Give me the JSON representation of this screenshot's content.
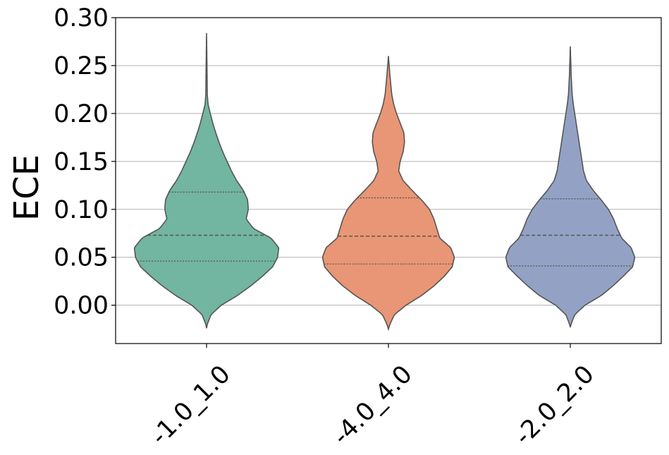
{
  "chart_data": {
    "type": "violin",
    "ylabel": "ECE",
    "xlabel": "",
    "title": "",
    "categories": [
      "-1.0_1.0",
      "-4.0_4.0",
      "-2.0_2.0"
    ],
    "ylim": [
      -0.04,
      0.3
    ],
    "yticks": [
      0.0,
      0.05,
      0.1,
      0.15,
      0.2,
      0.25,
      0.3
    ],
    "ytick_labels": [
      "0.00",
      "0.05",
      "0.10",
      "0.15",
      "0.20",
      "0.25",
      "0.30"
    ],
    "grid": "y",
    "inner": "quartile",
    "colors": [
      "#72b5a0",
      "#e99676",
      "#93a2c4"
    ],
    "edge_color": "#555555",
    "violins": [
      {
        "category": "-1.0_1.0",
        "min": -0.024,
        "max": 0.284,
        "q1": 0.046,
        "median": 0.073,
        "q3": 0.118,
        "density_profile": [
          [
            -0.024,
            0.0
          ],
          [
            -0.02,
            0.01
          ],
          [
            -0.01,
            0.06
          ],
          [
            0.0,
            0.2
          ],
          [
            0.01,
            0.42
          ],
          [
            0.02,
            0.6
          ],
          [
            0.03,
            0.76
          ],
          [
            0.04,
            0.9
          ],
          [
            0.05,
            0.97
          ],
          [
            0.06,
            0.985
          ],
          [
            0.07,
            0.88
          ],
          [
            0.08,
            0.64
          ],
          [
            0.09,
            0.54
          ],
          [
            0.1,
            0.57
          ],
          [
            0.11,
            0.56
          ],
          [
            0.12,
            0.5
          ],
          [
            0.13,
            0.41
          ],
          [
            0.14,
            0.34
          ],
          [
            0.15,
            0.28
          ],
          [
            0.16,
            0.22
          ],
          [
            0.17,
            0.17
          ],
          [
            0.18,
            0.125
          ],
          [
            0.19,
            0.085
          ],
          [
            0.2,
            0.05
          ],
          [
            0.21,
            0.02
          ],
          [
            0.22,
            0.01
          ],
          [
            0.25,
            0.006
          ],
          [
            0.284,
            0.0
          ]
        ]
      },
      {
        "category": "-4.0_4.0",
        "min": -0.025,
        "max": 0.26,
        "q1": 0.043,
        "median": 0.072,
        "q3": 0.112,
        "density_profile": [
          [
            -0.025,
            0.0
          ],
          [
            -0.02,
            0.02
          ],
          [
            -0.01,
            0.08
          ],
          [
            0.0,
            0.24
          ],
          [
            0.01,
            0.45
          ],
          [
            0.02,
            0.62
          ],
          [
            0.03,
            0.76
          ],
          [
            0.04,
            0.87
          ],
          [
            0.05,
            0.9
          ],
          [
            0.06,
            0.85
          ],
          [
            0.07,
            0.7
          ],
          [
            0.08,
            0.66
          ],
          [
            0.09,
            0.62
          ],
          [
            0.1,
            0.56
          ],
          [
            0.11,
            0.45
          ],
          [
            0.12,
            0.32
          ],
          [
            0.13,
            0.2
          ],
          [
            0.14,
            0.14
          ],
          [
            0.15,
            0.16
          ],
          [
            0.16,
            0.2
          ],
          [
            0.17,
            0.22
          ],
          [
            0.18,
            0.21
          ],
          [
            0.19,
            0.16
          ],
          [
            0.2,
            0.11
          ],
          [
            0.21,
            0.07
          ],
          [
            0.22,
            0.045
          ],
          [
            0.24,
            0.02
          ],
          [
            0.26,
            0.0
          ]
        ]
      },
      {
        "category": "-2.0_2.0",
        "min": -0.023,
        "max": 0.27,
        "q1": 0.041,
        "median": 0.073,
        "q3": 0.111,
        "density_profile": [
          [
            -0.023,
            0.0
          ],
          [
            -0.02,
            0.01
          ],
          [
            -0.01,
            0.06
          ],
          [
            0.0,
            0.2
          ],
          [
            0.01,
            0.42
          ],
          [
            0.02,
            0.58
          ],
          [
            0.03,
            0.72
          ],
          [
            0.04,
            0.85
          ],
          [
            0.05,
            0.88
          ],
          [
            0.06,
            0.83
          ],
          [
            0.07,
            0.7
          ],
          [
            0.08,
            0.64
          ],
          [
            0.09,
            0.59
          ],
          [
            0.1,
            0.52
          ],
          [
            0.11,
            0.42
          ],
          [
            0.12,
            0.31
          ],
          [
            0.13,
            0.22
          ],
          [
            0.14,
            0.18
          ],
          [
            0.15,
            0.16
          ],
          [
            0.16,
            0.14
          ],
          [
            0.17,
            0.12
          ],
          [
            0.18,
            0.1
          ],
          [
            0.19,
            0.08
          ],
          [
            0.2,
            0.06
          ],
          [
            0.21,
            0.04
          ],
          [
            0.22,
            0.025
          ],
          [
            0.24,
            0.012
          ],
          [
            0.27,
            0.0
          ]
        ]
      }
    ]
  }
}
